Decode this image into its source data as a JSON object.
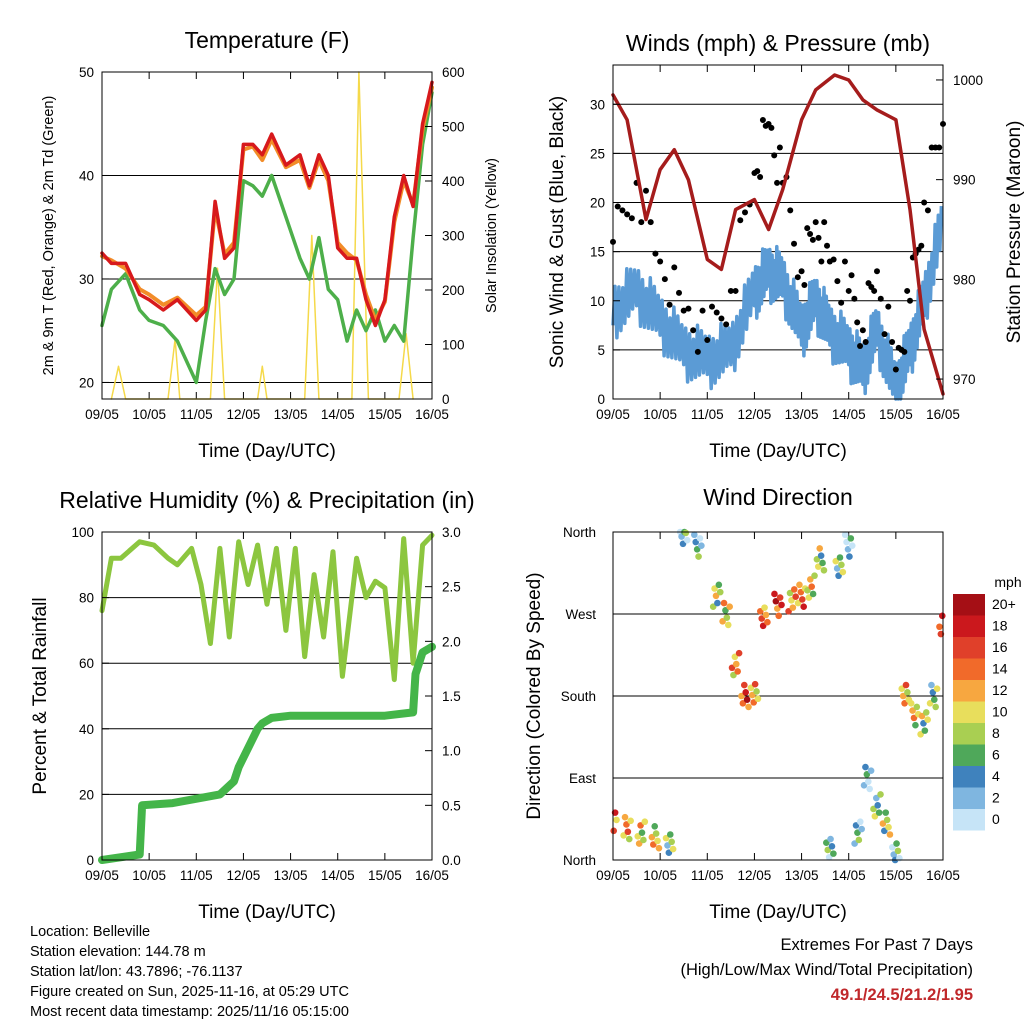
{
  "x_ticks": [
    "09/05",
    "10/05",
    "11/05",
    "12/05",
    "13/05",
    "14/05",
    "15/05",
    "16/05"
  ],
  "x_title": "Time (Day/UTC)",
  "colors": {
    "temp2m": "#d7191c",
    "temp9m": "#f28c28",
    "dew": "#4daf4a",
    "solar": "#f5d94a",
    "gust": "#000000",
    "wind": "#5b9bd5",
    "pressure": "#a51c1c",
    "rh": "#8cc63f",
    "precip": "#44b549"
  },
  "temperature": {
    "chart_data": {
      "type": "line",
      "title": "Temperature (F)",
      "ylabel_left": "2m & 9m T (Red, Orange) & 2m Td (Green)",
      "ylabel_right": "Solar Insolation (Yellow)",
      "ylim_left": [
        18.4,
        50
      ],
      "ylim_right": [
        0,
        600
      ],
      "yticks_left": [
        "20",
        "30",
        "40",
        "50"
      ],
      "yticks_right": [
        "0",
        "100",
        "200",
        "300",
        "400",
        "500",
        "600"
      ],
      "grid_left": [
        20,
        30,
        40,
        50
      ],
      "series": [
        {
          "name": "T 2m",
          "x": [
            0,
            0.2,
            0.5,
            0.8,
            1.0,
            1.3,
            1.6,
            2.0,
            2.2,
            2.4,
            2.6,
            2.8,
            3.0,
            3.2,
            3.4,
            3.6,
            3.9,
            4.2,
            4.4,
            4.6,
            4.8,
            5.0,
            5.2,
            5.4,
            5.6,
            5.8,
            6.0,
            6.2,
            6.4,
            6.6,
            6.8,
            7.0
          ],
          "values": [
            32.5,
            31.5,
            31.5,
            28.5,
            28,
            27,
            28,
            26,
            27,
            37.5,
            32,
            33,
            43,
            43,
            42,
            44,
            41,
            42,
            39,
            42,
            40,
            33,
            32,
            32,
            28,
            25.5,
            28,
            36,
            40,
            37,
            45,
            49
          ]
        },
        {
          "name": "T 9m",
          "x": [
            0,
            0.2,
            0.5,
            0.8,
            1.0,
            1.3,
            1.6,
            2.0,
            2.2,
            2.4,
            2.6,
            2.8,
            3.0,
            3.2,
            3.4,
            3.6,
            3.9,
            4.2,
            4.4,
            4.6,
            4.8,
            5.0,
            5.2,
            5.4,
            5.6,
            5.8,
            6.0,
            6.2,
            6.4,
            6.6,
            6.8,
            7.0
          ],
          "values": [
            32.2,
            31.8,
            31,
            29,
            28.5,
            27.5,
            28.2,
            26.5,
            27.3,
            36.8,
            32.4,
            33.5,
            42.5,
            42.8,
            41.5,
            43.5,
            40.8,
            41.5,
            38.8,
            41.5,
            39.5,
            33.5,
            32.5,
            31.8,
            28.5,
            26,
            27.8,
            35.5,
            39.5,
            37.2,
            44.5,
            48.5
          ]
        },
        {
          "name": "Td 2m",
          "x": [
            0,
            0.2,
            0.5,
            0.8,
            1.0,
            1.3,
            1.6,
            2.0,
            2.2,
            2.4,
            2.6,
            2.8,
            3.0,
            3.2,
            3.4,
            3.6,
            3.9,
            4.2,
            4.4,
            4.6,
            4.8,
            5.0,
            5.2,
            5.4,
            5.6,
            5.8,
            6.0,
            6.2,
            6.4,
            6.6,
            6.8,
            7.0
          ],
          "values": [
            25.5,
            29,
            30.5,
            27,
            26,
            25.5,
            24,
            20,
            26,
            31,
            28.5,
            30,
            39.5,
            39,
            38,
            40,
            36,
            32,
            30,
            34,
            29,
            28,
            24,
            27,
            25,
            27,
            24,
            25.5,
            24,
            34,
            43,
            48
          ]
        },
        {
          "name": "Solar insolation",
          "x": [
            0.2,
            0.35,
            0.5,
            1.4,
            1.55,
            1.65,
            2.3,
            2.45,
            2.6,
            3.3,
            3.4,
            3.5,
            4.3,
            4.45,
            4.6,
            5.3,
            5.45,
            5.65,
            6.3,
            6.45,
            6.6
          ],
          "values": [
            0,
            60,
            0,
            0,
            110,
            0,
            0,
            240,
            0,
            0,
            60,
            0,
            0,
            300,
            0,
            0,
            600,
            0,
            0,
            120,
            0
          ]
        }
      ]
    }
  },
  "winds": {
    "chart_data": {
      "type": "scatter",
      "title": "Winds (mph) & Pressure (mb)",
      "ylabel_left": "Sonic Wind & Gust (Blue, Black)",
      "ylabel_right": "Station Pressure (Maroon)",
      "ylim_left": [
        0,
        34
      ],
      "ylim_right": [
        968,
        1001.5
      ],
      "yticks_left": [
        "0",
        "5",
        "10",
        "15",
        "20",
        "25",
        "30"
      ],
      "yticks_right": [
        "970",
        "980",
        "990",
        "1000"
      ],
      "grid_left": [
        5,
        10,
        15,
        20,
        25,
        30
      ],
      "series": [
        {
          "name": "Gust",
          "x": [
            0,
            0.5,
            1.0,
            1.5,
            2.0,
            2.5,
            3.0,
            3.3,
            3.6,
            4.0,
            4.3,
            4.6,
            5.0,
            5.3,
            5.6,
            6.0,
            6.3,
            6.6,
            7.0
          ],
          "values": [
            16,
            22,
            14,
            9,
            6,
            11,
            23,
            28,
            22,
            13,
            18,
            14,
            11,
            7,
            13,
            3,
            10,
            20,
            28
          ]
        },
        {
          "name": "Sonic wind",
          "x": [
            0,
            0.5,
            1.0,
            1.5,
            2.0,
            2.5,
            3.0,
            3.3,
            3.6,
            4.0,
            4.3,
            4.6,
            5.0,
            5.3,
            5.6,
            6.0,
            6.3,
            6.6,
            7.0
          ],
          "values": [
            9,
            11,
            8,
            5,
            4,
            5,
            11,
            13,
            12,
            7,
            10,
            7,
            5,
            3,
            7,
            1,
            5,
            10,
            18
          ]
        },
        {
          "name": "Pressure",
          "x": [
            0,
            0.3,
            0.7,
            1.0,
            1.3,
            1.6,
            2.0,
            2.3,
            2.6,
            3.0,
            3.3,
            3.6,
            4.0,
            4.3,
            4.7,
            5.0,
            5.3,
            5.6,
            6.0,
            6.3,
            6.6,
            7.0
          ],
          "values": [
            998.5,
            996,
            986,
            991,
            993,
            990,
            982,
            981,
            987,
            988,
            985,
            989,
            996,
            999,
            1000.5,
            1000,
            998,
            997,
            996,
            987,
            975,
            968.5
          ]
        }
      ]
    }
  },
  "humidity": {
    "chart_data": {
      "type": "line",
      "title": "Relative Humidity (%) & Precipitation (in)",
      "ylabel_left": "Percent & Total Rainfall",
      "ylim_left": [
        0,
        100
      ],
      "ylim_right": [
        0,
        3
      ],
      "yticks_left": [
        "0",
        "20",
        "40",
        "60",
        "80",
        "100"
      ],
      "yticks_right": [
        "0.0",
        "0.5",
        "1.0",
        "1.5",
        "2.0",
        "2.5",
        "3.0"
      ],
      "grid_left": [
        20,
        40,
        60,
        80,
        100
      ],
      "series": [
        {
          "name": "Relative humidity",
          "x": [
            0,
            0.2,
            0.4,
            0.8,
            1.1,
            1.4,
            1.6,
            1.9,
            2.1,
            2.3,
            2.5,
            2.7,
            2.9,
            3.1,
            3.3,
            3.5,
            3.7,
            3.9,
            4.1,
            4.3,
            4.5,
            4.7,
            4.9,
            5.1,
            5.4,
            5.6,
            5.8,
            6.0,
            6.2,
            6.4,
            6.6,
            6.8,
            7.0
          ],
          "values": [
            76,
            92,
            92,
            97,
            96,
            92,
            90,
            95,
            84,
            66,
            95,
            68,
            97,
            84,
            96,
            78,
            95,
            70,
            95,
            62,
            87,
            68,
            94,
            56,
            92,
            80,
            85,
            83,
            55,
            98,
            60,
            96,
            99
          ]
        },
        {
          "name": "Total precipitation",
          "x": [
            0,
            0.8,
            0.85,
            1.5,
            2.5,
            2.7,
            2.8,
            2.9,
            3.3,
            3.4,
            3.6,
            4.0,
            5.0,
            6.0,
            6.6,
            6.65,
            6.8,
            7.0
          ],
          "values": [
            0,
            0.05,
            0.5,
            0.52,
            0.6,
            0.68,
            0.72,
            0.85,
            1.2,
            1.25,
            1.3,
            1.32,
            1.32,
            1.32,
            1.35,
            1.7,
            1.9,
            1.95
          ]
        }
      ]
    }
  },
  "direction": {
    "chart_data": {
      "type": "scatter",
      "title": "Wind Direction",
      "ylabel": "Direction (Colored By Speed)",
      "ylim": [
        0,
        360
      ],
      "yticks": [
        "North",
        "East",
        "South",
        "West",
        "North"
      ],
      "grid": [
        90,
        180,
        270
      ],
      "legend_title": "mph",
      "legend_labels": [
        "20+",
        "18",
        "16",
        "14",
        "12",
        "10",
        "8",
        "6",
        "4",
        "2",
        "0"
      ],
      "legend_colors": [
        "#a50f15",
        "#cb181d",
        "#e0402a",
        "#f16a2a",
        "#f7a740",
        "#e8de5c",
        "#a9cf52",
        "#4fa85a",
        "#3f82bd",
        "#7fb6e0",
        "#c6e4f7"
      ],
      "series": [
        {
          "name": "Wind direction",
          "x": [
            0,
            0.3,
            0.6,
            0.9,
            1.2,
            1.5,
            1.8,
            2.2,
            2.4,
            2.6,
            2.8,
            3.0,
            3.2,
            3.5,
            3.8,
            4.0,
            4.2,
            4.4,
            4.6,
            4.8,
            5.0,
            5.2,
            5.4,
            5.6,
            5.8,
            6.0,
            6.2,
            6.4,
            6.6,
            6.8,
            7.0
          ],
          "values": [
            40,
            35,
            30,
            25,
            20,
            355,
            345,
            290,
            270,
            215,
            180,
            185,
            265,
            280,
            285,
            290,
            300,
            330,
            15,
            320,
            345,
            30,
            90,
            60,
            40,
            10,
            180,
            160,
            150,
            180,
            260
          ],
          "speeds": [
            14,
            12,
            10,
            9,
            5,
            4,
            4,
            8,
            10,
            12,
            16,
            12,
            14,
            16,
            12,
            14,
            10,
            8,
            4,
            6,
            2,
            4,
            2,
            6,
            8,
            4,
            12,
            10,
            8,
            6,
            18
          ]
        }
      ]
    }
  },
  "info": {
    "location": "Location: Belleville",
    "elevation": "Station elevation: 144.78 m",
    "latlon": "Station lat/lon: 43.7896; -76.1137",
    "created": "Figure created on Sun, 2025-11-16, at 05:29 UTC",
    "timestamp": "Most recent data timestamp: 2025/11/16 05:15:00"
  },
  "extremes": {
    "title": "Extremes For Past 7 Days",
    "subtitle": "(High/Low/Max Wind/Total Precipitation)",
    "values": "49.1/24.5/21.2/1.95"
  }
}
